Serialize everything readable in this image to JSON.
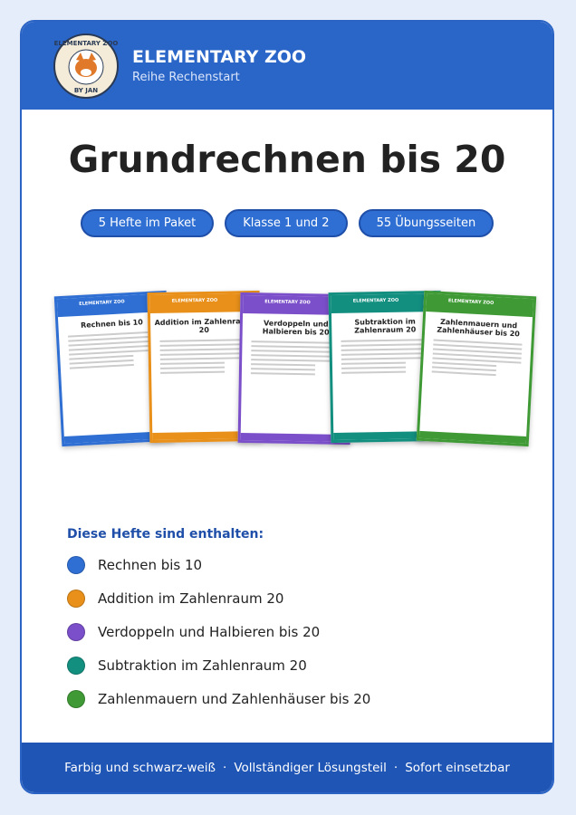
{
  "header": {
    "logo_top": "ELEMENTARY ZOO",
    "logo_bottom": "BY JAN",
    "brand": "ELEMENTARY ZOO",
    "series": "Reihe Rechenstart"
  },
  "title": "Grundrechnen bis 20",
  "badges": [
    "5 Hefte im Paket",
    "Klasse 1 und 2",
    "55 Übungsseiten"
  ],
  "contents": {
    "heading": "Diese Hefte sind enthalten:",
    "items": [
      {
        "label": "Rechnen bis 10",
        "color": "#2f6fd3"
      },
      {
        "label": "Addition im Zahlenraum 20",
        "color": "#e8901a"
      },
      {
        "label": "Verdoppeln und Halbieren bis 20",
        "color": "#7b4fc9"
      },
      {
        "label": "Subtraktion im Zahlenraum 20",
        "color": "#138f80"
      },
      {
        "label": "Zahlenmauern und Zahlenhäuser bis 20",
        "color": "#3f9a35"
      }
    ]
  },
  "footer": [
    "Farbig und schwarz-weiß",
    "Vollständiger Lösungsteil",
    "Sofort einsetzbar"
  ]
}
